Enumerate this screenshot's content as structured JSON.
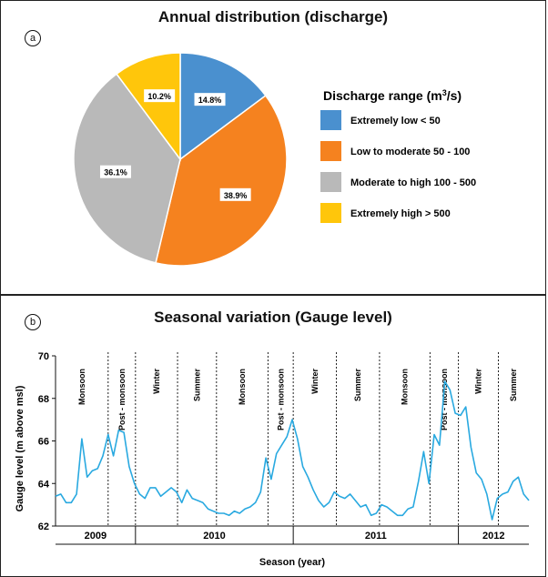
{
  "chart_data": [
    {
      "type": "pie",
      "title": "Annual distribution (discharge)",
      "panel_label": "a",
      "legend_title_main": "Discharge range (m",
      "legend_title_sup": "3",
      "legend_title_tail": "/s)",
      "legend_placement": "right",
      "slices": [
        {
          "name": "Extremely low < 50",
          "value": 14.8,
          "label": "14.8%",
          "color": "#4a90cf"
        },
        {
          "name": "Low to moderate 50 - 100",
          "value": 38.9,
          "label": "38.9%",
          "color": "#f5821f"
        },
        {
          "name": "Moderate to high 100 - 500",
          "value": 36.1,
          "label": "36.1%",
          "color": "#b9b9b9"
        },
        {
          "name": "Extremely high > 500",
          "value": 10.2,
          "label": "10.2%",
          "color": "#ffc60b"
        }
      ]
    },
    {
      "type": "line",
      "title": "Seasonal variation (Gauge level)",
      "panel_label": "b",
      "xlabel": "Season (year)",
      "ylabel": "Gauge level (m above msl)",
      "ylim": [
        62,
        70
      ],
      "yticks": [
        62,
        64,
        66,
        68,
        70
      ],
      "line_color": "#29a9e0",
      "grid": false,
      "x_range": [
        0,
        45
      ],
      "series": [
        {
          "x": [
            0,
            0.5,
            1,
            1.5,
            2,
            2.5,
            3,
            3.5,
            4,
            4.5,
            5,
            5.5,
            6,
            6.5,
            7,
            7.5,
            8,
            8.5,
            9,
            9.5,
            10,
            10.5,
            11,
            11.5,
            12,
            12.5,
            13,
            13.5,
            14,
            14.5,
            15,
            15.5,
            16,
            16.5,
            17,
            17.5,
            18,
            18.5,
            19,
            19.5,
            20,
            20.5,
            21,
            21.5,
            22,
            22.5,
            23,
            23.5,
            24,
            24.5,
            25,
            25.5,
            26,
            26.5,
            27,
            27.5,
            28,
            28.5,
            29,
            29.5,
            30,
            30.5,
            31,
            31.5,
            32,
            32.5,
            33,
            33.5,
            34,
            34.5,
            35,
            35.5,
            36,
            36.5,
            37,
            37.5,
            38,
            38.5,
            39,
            39.5,
            40,
            40.5,
            41,
            41.5,
            42,
            42.5,
            43,
            43.5,
            44,
            44.5,
            45
          ],
          "y": [
            63.4,
            63.5,
            63.1,
            63.1,
            63.5,
            66.1,
            64.3,
            64.6,
            64.7,
            65.3,
            66.3,
            65.3,
            66.5,
            66.4,
            64.8,
            64.0,
            63.5,
            63.3,
            63.8,
            63.8,
            63.4,
            63.6,
            63.8,
            63.6,
            63.1,
            63.7,
            63.3,
            63.2,
            63.1,
            62.8,
            62.7,
            62.6,
            62.6,
            62.5,
            62.7,
            62.6,
            62.8,
            62.9,
            63.1,
            63.6,
            65.2,
            64.2,
            65.4,
            65.8,
            66.2,
            67.0,
            66.1,
            64.8,
            64.3,
            63.7,
            63.2,
            62.9,
            63.1,
            63.6,
            63.4,
            63.3,
            63.5,
            63.2,
            62.9,
            63.0,
            62.5,
            62.6,
            63.0,
            62.9,
            62.7,
            62.5,
            62.5,
            62.8,
            62.9,
            64.1,
            65.5,
            64.0,
            66.3,
            65.8,
            68.8,
            68.4,
            67.3,
            67.2,
            67.6,
            65.7,
            64.5,
            64.2,
            63.5,
            62.3,
            63.3,
            63.5,
            63.6,
            64.1,
            64.3,
            63.5,
            63.2
          ]
        }
      ],
      "seasons": [
        {
          "label": "Monsoon",
          "start": 0,
          "end": 5
        },
        {
          "label": "Post - monsoon",
          "start": 5,
          "end": 7.6
        },
        {
          "label": "Winter",
          "start": 7.6,
          "end": 11.6
        },
        {
          "label": "Summer",
          "start": 11.6,
          "end": 15.3
        },
        {
          "label": "Monsoon",
          "start": 15.3,
          "end": 20.2
        },
        {
          "label": "Post - monsoon",
          "start": 20.2,
          "end": 22.6
        },
        {
          "label": "Winter",
          "start": 22.6,
          "end": 26.7
        },
        {
          "label": "Summer",
          "start": 26.7,
          "end": 30.8
        },
        {
          "label": "Monsoon",
          "start": 30.8,
          "end": 35.6
        },
        {
          "label": "Post - monsoon",
          "start": 35.6,
          "end": 38.3
        },
        {
          "label": "Winter",
          "start": 38.3,
          "end": 42.1
        },
        {
          "label": "Summer",
          "start": 42.1,
          "end": 45
        }
      ],
      "years": [
        {
          "label": "2009",
          "start": 0,
          "end": 7.6
        },
        {
          "label": "2010",
          "start": 7.6,
          "end": 22.6
        },
        {
          "label": "2011",
          "start": 22.6,
          "end": 38.3
        },
        {
          "label": "2012",
          "start": 38.3,
          "end": 45
        }
      ]
    }
  ]
}
